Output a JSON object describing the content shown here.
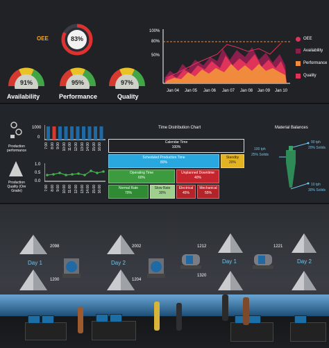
{
  "kpis": {
    "oee": {
      "label": "OEE",
      "value": "83%",
      "pct": 0.83
    },
    "availability": {
      "label": "Availability",
      "value": "91%",
      "level": 0.91
    },
    "performance": {
      "label": "Performance",
      "value": "95%",
      "level": 0.95
    },
    "quality": {
      "label": "Quality",
      "value": "97%",
      "level": 0.97
    }
  },
  "trend_chart": {
    "y_ticks": [
      "100%",
      "80%",
      "50%"
    ],
    "x_ticks": [
      "Jan 04",
      "Jan 05",
      "Jan 06",
      "Jan 07",
      "Jan 08",
      "Jan 09",
      "Jan 10"
    ],
    "legend": [
      {
        "name": "OEE",
        "color": "#e0335a",
        "icon": "dot"
      },
      {
        "name": "Availability",
        "color": "#8a1f4e",
        "icon": "square"
      },
      {
        "name": "Performance",
        "color": "#f08a3c",
        "icon": "square"
      },
      {
        "name": "Quality",
        "color": "#e0335a",
        "icon": "square"
      }
    ]
  },
  "production": {
    "perf_label": "Production performance",
    "quality_label": "Production Quality (Ore Grade)",
    "bar_y_ticks": [
      "1000",
      "0"
    ],
    "line_y_ticks": [
      "1.0",
      "0.5",
      "0.0"
    ],
    "times": [
      "7:00",
      "8:00",
      "9:00",
      "10:00",
      "11:00",
      "12:00",
      "13:00",
      "14:00",
      "15:00",
      "16:00"
    ]
  },
  "time_distribution": {
    "title": "Time Distribution Chart",
    "calendar": {
      "label": "Calendar Time",
      "value": "100%"
    },
    "scheduled": {
      "label": "Scheduled Production Time",
      "value": "80%"
    },
    "standby": {
      "label": "Standby",
      "value": "20%"
    },
    "operating": {
      "label": "Operating Time",
      "value": "60%"
    },
    "unplanned": {
      "label": "Unplanned Downtime",
      "value": "40%"
    },
    "normal_rate": {
      "label": "Normal Rate",
      "value": "70%"
    },
    "slow_rate": {
      "label": "Slow Rate",
      "value": "30%"
    },
    "electrical": {
      "label": "Electrical",
      "value": "45%"
    },
    "mechanical": {
      "label": "Mechanical",
      "value": "55%"
    }
  },
  "material_balances": {
    "title": "Material Balances",
    "input": {
      "rate": "100 tph",
      "solids": "25% Solids"
    },
    "overflow": {
      "rate": "90 tph",
      "solids": "20% Solids"
    },
    "underflow": {
      "rate": "10 tph",
      "solids": "30% Solids"
    }
  },
  "plant": {
    "left": {
      "top_value": "2098",
      "bottom_value": "1200",
      "day": "Day 1"
    },
    "mid": {
      "top_value": "2002",
      "bottom_value": "1204",
      "day": "Day 2"
    },
    "right1": {
      "top_value": "1212",
      "bottom_value": "1320",
      "day": "Day 1"
    },
    "right2": {
      "top_value": "1221",
      "day": "Day 2"
    }
  }
}
